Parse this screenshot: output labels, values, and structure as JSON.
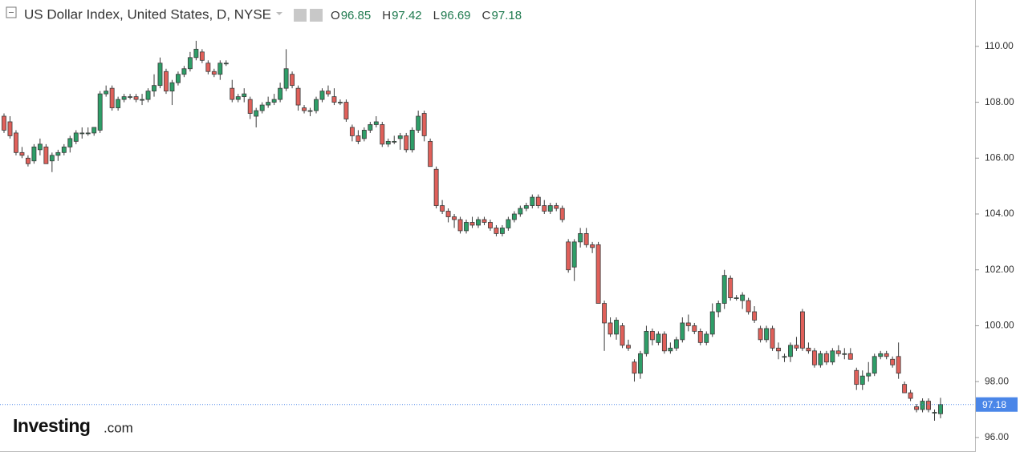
{
  "chart_data": {
    "type": "candlestick",
    "title": "US Dollar Index, United States, D, NYSE",
    "header": [
      {
        "label": "O",
        "value": 96.85
      },
      {
        "label": "H",
        "value": 97.42
      },
      {
        "label": "L",
        "value": 96.69
      },
      {
        "label": "C",
        "value": 97.18
      }
    ],
    "brand": {
      "name": "Investing",
      "suffix": ".com"
    },
    "up_color": "#2e9e68",
    "down_color": "#e0605a",
    "wick_color": "#3a3a3a",
    "last_price_color": "#4a86e8",
    "ylim": [
      95.48,
      111.66
    ],
    "yticks": [
      {
        "value": 96,
        "label": "96.00"
      },
      {
        "value": 98,
        "label": "98.00"
      },
      {
        "value": 100,
        "label": "100.00"
      },
      {
        "value": 102,
        "label": "102.00"
      },
      {
        "value": 104,
        "label": "104.00"
      },
      {
        "value": 106,
        "label": "106.00"
      },
      {
        "value": 108,
        "label": "108.00"
      },
      {
        "value": 110,
        "label": "110.00"
      }
    ],
    "open": [
      107.5,
      107.3,
      106.9,
      106.2,
      106.0,
      105.9,
      106.3,
      106.4,
      105.9,
      106.1,
      106.2,
      106.4,
      106.6,
      106.9,
      106.9,
      106.9,
      107.0,
      108.3,
      108.5,
      107.8,
      108.1,
      108.2,
      108.2,
      108.1,
      108.1,
      108.4,
      108.6,
      109.1,
      108.4,
      108.7,
      109.0,
      109.2,
      109.6,
      109.8,
      109.4,
      109.1,
      109.0,
      109.4,
      108.5,
      108.1,
      108.2,
      108.1,
      107.5,
      107.7,
      107.9,
      108.0,
      108.1,
      108.5,
      109.0,
      108.5,
      107.8,
      107.7,
      107.7,
      108.1,
      108.4,
      108.2,
      108.0,
      108.0,
      107.1,
      106.8,
      106.7,
      107.0,
      107.2,
      107.2,
      106.5,
      106.6,
      106.7,
      106.8,
      106.3,
      107.0,
      107.6,
      106.6,
      105.6,
      104.3,
      104.1,
      103.9,
      103.8,
      103.4,
      103.7,
      103.6,
      103.8,
      103.7,
      103.5,
      103.3,
      103.5,
      103.8,
      104.0,
      104.2,
      104.3,
      104.6,
      104.3,
      104.1,
      104.3,
      104.2,
      103.0,
      102.1,
      103.0,
      103.3,
      102.9,
      102.9,
      100.8,
      100.1,
      99.7,
      100.0,
      99.3,
      98.7,
      98.3,
      99.0,
      99.8,
      99.4,
      99.7,
      99.1,
      99.2,
      99.5,
      100.1,
      100.0,
      99.8,
      99.4,
      99.7,
      100.5,
      100.8,
      101.7,
      101.0,
      100.9,
      100.9,
      100.5,
      99.9,
      99.5,
      99.9,
      99.2,
      98.9,
      98.9,
      99.3,
      100.5,
      99.2,
      99.1,
      98.6,
      99.0,
      98.7,
      99.1,
      99.0,
      99.0,
      98.4,
      97.9,
      98.2,
      98.3,
      98.9,
      99.0,
      98.8,
      98.9,
      97.9,
      97.6,
      97.1,
      97.0,
      97.3,
      96.9,
      96.85
    ],
    "high": [
      107.6,
      107.5,
      107.0,
      106.4,
      106.1,
      106.5,
      106.7,
      106.5,
      106.2,
      106.3,
      106.5,
      106.8,
      107.0,
      107.1,
      107.1,
      107.1,
      108.4,
      108.6,
      108.6,
      108.2,
      108.3,
      108.3,
      108.3,
      108.3,
      108.5,
      109.0,
      109.6,
      109.2,
      108.8,
      109.1,
      109.3,
      109.8,
      110.2,
      109.9,
      109.5,
      109.2,
      109.5,
      109.5,
      108.8,
      108.3,
      108.5,
      108.2,
      107.8,
      108.0,
      108.2,
      108.3,
      108.7,
      109.9,
      109.1,
      108.6,
      107.9,
      107.8,
      108.2,
      108.5,
      108.6,
      108.5,
      108.1,
      108.1,
      107.2,
      107.0,
      107.1,
      107.3,
      107.5,
      107.3,
      106.7,
      106.8,
      106.9,
      106.9,
      107.1,
      107.7,
      107.7,
      106.7,
      105.7,
      104.5,
      104.2,
      104.0,
      103.9,
      103.8,
      103.9,
      103.9,
      103.9,
      103.8,
      103.6,
      103.6,
      103.9,
      104.1,
      104.3,
      104.4,
      104.7,
      104.7,
      104.5,
      104.4,
      104.4,
      104.3,
      103.1,
      103.1,
      103.5,
      103.5,
      103.0,
      103.0,
      100.9,
      100.3,
      100.3,
      100.1,
      99.5,
      98.8,
      99.1,
      100.0,
      99.9,
      99.8,
      99.8,
      99.4,
      99.6,
      100.3,
      100.4,
      100.1,
      99.9,
      99.8,
      100.8,
      100.9,
      102.0,
      101.8,
      101.1,
      101.2,
      101.0,
      100.7,
      100.0,
      100.0,
      100.0,
      99.4,
      99.0,
      99.4,
      99.6,
      100.6,
      99.4,
      99.2,
      99.1,
      99.1,
      99.2,
      99.3,
      99.2,
      99.2,
      98.5,
      98.4,
      98.7,
      99.0,
      99.1,
      99.1,
      98.9,
      99.4,
      98.0,
      97.7,
      97.2,
      97.4,
      97.4,
      97.0,
      97.42
    ],
    "low": [
      106.9,
      106.7,
      106.1,
      106.0,
      105.7,
      105.8,
      106.1,
      105.8,
      105.5,
      105.9,
      106.1,
      106.2,
      106.5,
      106.7,
      106.8,
      106.8,
      106.9,
      108.2,
      107.7,
      107.7,
      108.0,
      108.1,
      108.0,
      107.9,
      108.0,
      108.2,
      108.5,
      108.3,
      107.9,
      108.6,
      108.9,
      109.1,
      109.5,
      109.4,
      109.0,
      108.9,
      108.8,
      109.3,
      108.0,
      108.0,
      108.0,
      107.4,
      107.1,
      107.6,
      107.8,
      107.9,
      108.0,
      108.4,
      108.5,
      107.7,
      107.6,
      107.5,
      107.6,
      108.0,
      108.2,
      107.9,
      107.9,
      107.3,
      106.6,
      106.5,
      106.6,
      106.9,
      107.1,
      106.4,
      106.4,
      106.5,
      106.3,
      106.2,
      106.2,
      106.9,
      106.6,
      105.7,
      104.2,
      104.0,
      103.7,
      103.5,
      103.3,
      103.3,
      103.5,
      103.5,
      103.6,
      103.4,
      103.2,
      103.2,
      103.4,
      103.7,
      103.9,
      104.1,
      104.2,
      104.2,
      104.0,
      104.0,
      104.1,
      103.7,
      101.9,
      101.6,
      102.8,
      102.8,
      102.6,
      100.8,
      99.1,
      99.6,
      99.5,
      99.2,
      99.1,
      98.0,
      98.1,
      98.9,
      99.3,
      99.3,
      99.0,
      99.0,
      99.1,
      99.4,
      99.8,
      99.7,
      99.3,
      99.3,
      99.6,
      100.3,
      100.6,
      100.9,
      100.9,
      100.6,
      100.4,
      100.1,
      99.4,
      99.4,
      99.1,
      98.8,
      98.7,
      98.7,
      99.1,
      99.1,
      99.0,
      98.5,
      98.5,
      98.6,
      98.6,
      98.9,
      98.8,
      98.8,
      97.7,
      97.7,
      98.0,
      98.2,
      98.8,
      98.8,
      98.5,
      98.1,
      97.6,
      97.3,
      96.9,
      96.9,
      96.9,
      96.6,
      96.69
    ],
    "close": [
      107.0,
      106.8,
      106.2,
      106.1,
      105.8,
      106.4,
      106.5,
      105.8,
      106.1,
      106.2,
      106.4,
      106.7,
      106.9,
      106.9,
      106.9,
      107.1,
      108.3,
      108.4,
      107.8,
      108.1,
      108.2,
      108.2,
      108.1,
      108.1,
      108.4,
      108.6,
      109.4,
      108.4,
      108.7,
      109.0,
      109.2,
      109.6,
      109.9,
      109.5,
      109.1,
      109.0,
      109.4,
      109.4,
      108.1,
      108.2,
      108.3,
      107.6,
      107.7,
      107.9,
      108.0,
      108.1,
      108.5,
      109.2,
      108.6,
      107.9,
      107.7,
      107.7,
      108.1,
      108.4,
      108.3,
      108.0,
      108.0,
      107.4,
      106.8,
      106.6,
      107.0,
      107.2,
      107.3,
      106.5,
      106.6,
      106.6,
      106.8,
      106.3,
      107.0,
      107.5,
      106.8,
      105.7,
      104.3,
      104.1,
      103.9,
      103.8,
      103.4,
      103.7,
      103.6,
      103.8,
      103.7,
      103.5,
      103.3,
      103.5,
      103.8,
      104.0,
      104.2,
      104.3,
      104.6,
      104.3,
      104.1,
      104.3,
      104.2,
      103.8,
      102.0,
      103.0,
      103.3,
      102.9,
      102.8,
      100.8,
      100.1,
      99.7,
      100.2,
      99.3,
      99.2,
      98.3,
      99.0,
      99.8,
      99.5,
      99.7,
      99.1,
      99.2,
      99.5,
      100.1,
      100.0,
      99.8,
      99.4,
      99.7,
      100.5,
      100.8,
      101.8,
      101.0,
      101.0,
      101.1,
      100.5,
      100.2,
      99.5,
      99.9,
      99.2,
      99.1,
      98.9,
      99.3,
      99.2,
      99.2,
      99.1,
      98.6,
      99.0,
      98.7,
      99.1,
      99.0,
      99.0,
      98.8,
      97.9,
      98.2,
      98.3,
      98.9,
      99.0,
      98.9,
      98.6,
      98.3,
      97.6,
      97.4,
      97.0,
      97.3,
      97.0,
      96.9,
      97.18
    ]
  }
}
